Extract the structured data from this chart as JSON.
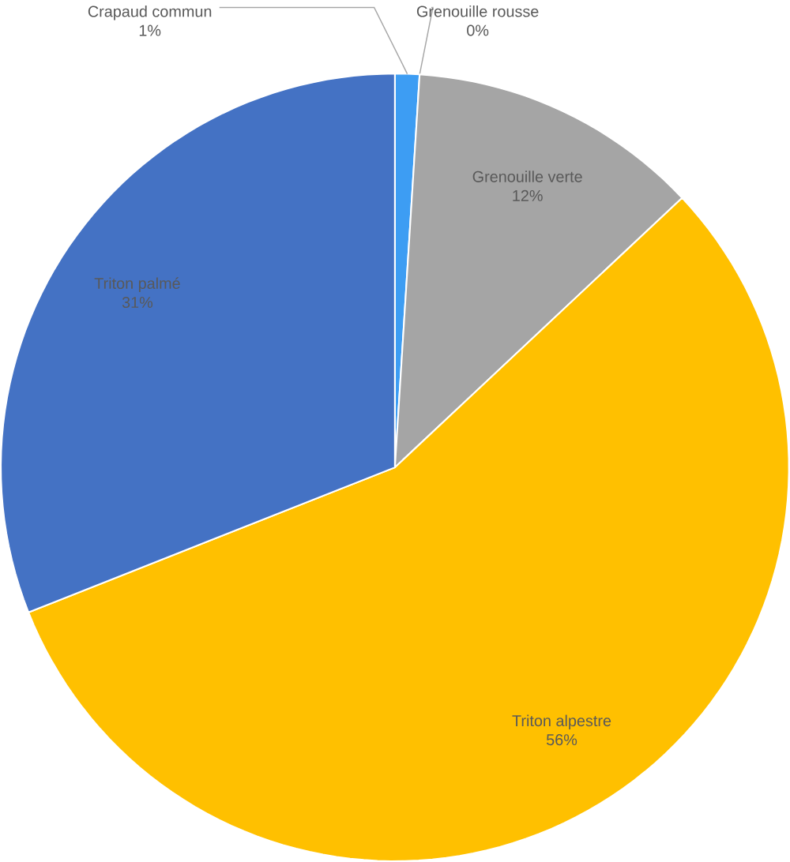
{
  "chart_data": {
    "type": "pie",
    "categories": [
      "Crapaud commun",
      "Grenouille rousse",
      "Grenouille verte",
      "Triton alpestre",
      "Triton palmé"
    ],
    "values": [
      1,
      0,
      12,
      56,
      31
    ],
    "value_labels": [
      "1%",
      "0%",
      "12%",
      "56%",
      "31%"
    ],
    "colors": [
      "#3d9df3",
      "#ed7d31",
      "#a5a5a5",
      "#ffc000",
      "#4472c4"
    ]
  }
}
